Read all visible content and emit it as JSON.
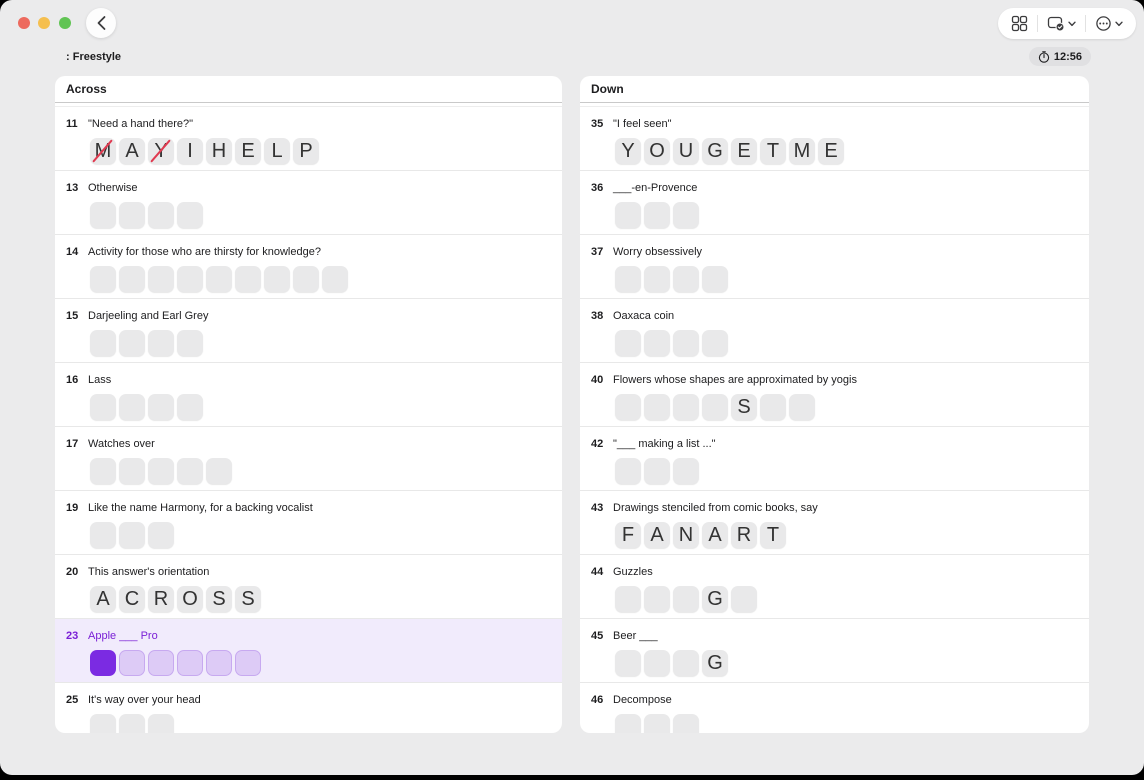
{
  "chrome": {
    "traffic_lights": [
      "close",
      "minimize",
      "zoom"
    ],
    "toolbar_buttons": [
      {
        "name": "grid-view"
      },
      {
        "name": "display-options",
        "badge": "check",
        "has_chevron": true
      },
      {
        "name": "more-options",
        "has_chevron": true
      }
    ]
  },
  "header": {
    "title": ": Freestyle",
    "timer": "12:56"
  },
  "colors": {
    "accent": "#7b2be2",
    "selected_row_bg": "#f1ebfc",
    "selected_cell_bg": "#ddcbf6",
    "selected_cell_border": "#c7a9f0",
    "wrong_mark": "#e03a50",
    "traffic_red": "#ed6a5e",
    "traffic_yellow": "#f5bf4f",
    "traffic_green": "#61c454"
  },
  "columns": [
    {
      "header": "Across",
      "clues": [
        {
          "number": "11",
          "text": "\"Need a hand there?\"",
          "cells": [
            {
              "letter": "M",
              "wrong": true
            },
            {
              "letter": "A"
            },
            {
              "letter": "Y",
              "wrong": true
            },
            {
              "letter": "I"
            },
            {
              "letter": "H"
            },
            {
              "letter": "E"
            },
            {
              "letter": "L"
            },
            {
              "letter": "P"
            }
          ]
        },
        {
          "number": "13",
          "text": "Otherwise",
          "cells": [
            {},
            {},
            {},
            {}
          ]
        },
        {
          "number": "14",
          "text": "Activity for those who are thirsty for knowledge?",
          "cells": [
            {},
            {},
            {},
            {},
            {},
            {},
            {},
            {},
            {}
          ]
        },
        {
          "number": "15",
          "text": "Darjeeling and Earl Grey",
          "cells": [
            {},
            {},
            {},
            {}
          ]
        },
        {
          "number": "16",
          "text": "Lass",
          "cells": [
            {},
            {},
            {},
            {}
          ]
        },
        {
          "number": "17",
          "text": "Watches over",
          "cells": [
            {},
            {},
            {},
            {},
            {}
          ]
        },
        {
          "number": "19",
          "text": "Like the name Harmony, for a backing vocalist",
          "cells": [
            {},
            {},
            {}
          ]
        },
        {
          "number": "20",
          "text": "This answer's orientation",
          "cells": [
            {
              "letter": "A"
            },
            {
              "letter": "C"
            },
            {
              "letter": "R"
            },
            {
              "letter": "O"
            },
            {
              "letter": "S"
            },
            {
              "letter": "S"
            }
          ]
        },
        {
          "number": "23",
          "text": "Apple ___ Pro",
          "selected": true,
          "cells": [
            {
              "active": true
            },
            {},
            {},
            {},
            {},
            {}
          ]
        },
        {
          "number": "25",
          "text": "It's way over your head",
          "cells": [
            {},
            {},
            {}
          ]
        }
      ]
    },
    {
      "header": "Down",
      "clues": [
        {
          "number": "35",
          "text": "\"I feel seen\"",
          "cells": [
            {
              "letter": "Y"
            },
            {
              "letter": "O"
            },
            {
              "letter": "U"
            },
            {
              "letter": "G"
            },
            {
              "letter": "E"
            },
            {
              "letter": "T"
            },
            {
              "letter": "M"
            },
            {
              "letter": "E"
            }
          ]
        },
        {
          "number": "36",
          "text": "___-en-Provence",
          "cells": [
            {},
            {},
            {}
          ]
        },
        {
          "number": "37",
          "text": "Worry obsessively",
          "cells": [
            {},
            {},
            {},
            {}
          ]
        },
        {
          "number": "38",
          "text": "Oaxaca coin",
          "cells": [
            {},
            {},
            {},
            {}
          ]
        },
        {
          "number": "40",
          "text": "Flowers whose shapes are approximated by yogis",
          "cells": [
            {},
            {},
            {},
            {},
            {
              "letter": "S"
            },
            {},
            {}
          ]
        },
        {
          "number": "42",
          "text": "\"___ making a list ...\"",
          "cells": [
            {},
            {},
            {}
          ]
        },
        {
          "number": "43",
          "text": "Drawings stenciled from comic books, say",
          "cells": [
            {
              "letter": "F"
            },
            {
              "letter": "A"
            },
            {
              "letter": "N"
            },
            {
              "letter": "A"
            },
            {
              "letter": "R"
            },
            {
              "letter": "T"
            }
          ]
        },
        {
          "number": "44",
          "text": "Guzzles",
          "cells": [
            {},
            {},
            {},
            {
              "letter": "G"
            },
            {}
          ]
        },
        {
          "number": "45",
          "text": "Beer ___",
          "cells": [
            {},
            {},
            {},
            {
              "letter": "G"
            }
          ]
        },
        {
          "number": "46",
          "text": "Decompose",
          "cells": [
            {},
            {},
            {}
          ]
        }
      ]
    }
  ]
}
